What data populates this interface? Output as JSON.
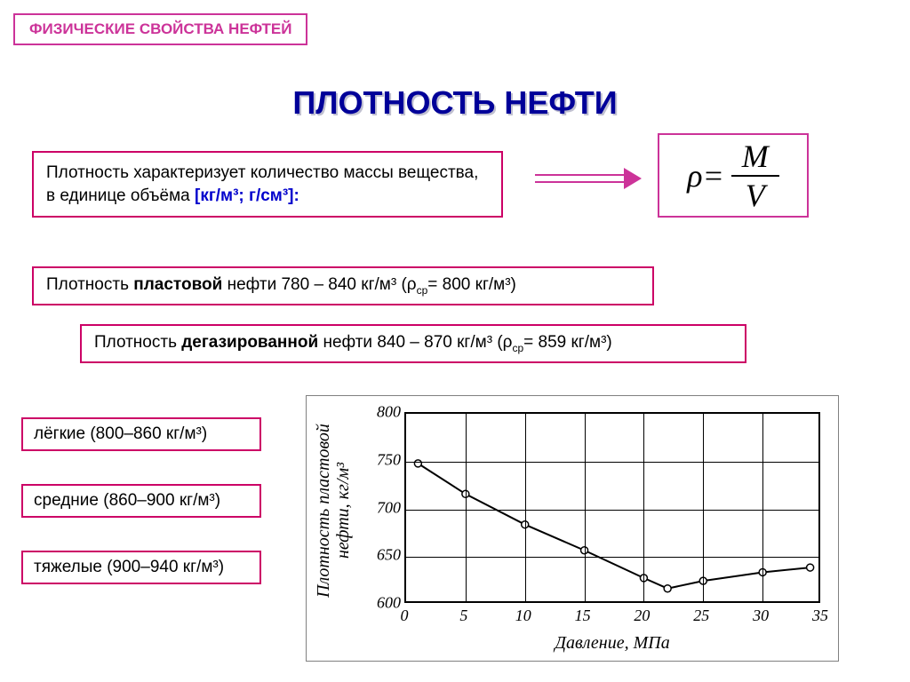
{
  "header": {
    "badge": "ФИЗИЧЕСКИЕ СВОЙСТВА НЕФТЕЙ"
  },
  "title": "ПЛОТНОСТЬ НЕФТИ",
  "definition": {
    "text": "Плотность характеризует количество массы вещества, в единице объёма ",
    "units": "[кг/м³; г/см³]:"
  },
  "formula": {
    "lhs": "ρ",
    "eq": " = ",
    "num": "M",
    "den": "V"
  },
  "rows": {
    "reservoir_prefix": "Плотность ",
    "reservoir_bold": "пластовой",
    "reservoir_suffix": " нефти  780 – 840 кг/м³ (ρ",
    "reservoir_sub": "ср",
    "reservoir_end": "= 800 кг/м³)",
    "degassed_prefix": "Плотность ",
    "degassed_bold": "дегазированной",
    "degassed_suffix": " нефти  840 – 870 кг/м³ (ρ",
    "degassed_sub": "ср",
    "degassed_end": "= 859 кг/м³)"
  },
  "categories": {
    "light": "лёгкие (800–860 кг/м³)",
    "medium": "средние (860–900 кг/м³)",
    "heavy": "тяжелые (900–940 кг/м³)"
  },
  "chart": {
    "type": "line",
    "xlabel": "Давление, МПа",
    "ylabel": "Плотность пластовой нефти, кг/м³",
    "xlim": [
      0,
      35
    ],
    "ylim": [
      600,
      800
    ],
    "xtick_step": 5,
    "ytick_step": 50,
    "x": [
      1,
      5,
      10,
      15,
      20,
      22,
      25,
      30,
      34
    ],
    "y": [
      748,
      716,
      684,
      657,
      628,
      617,
      625,
      634,
      639
    ],
    "line_color": "#000000",
    "marker_fill": "#ffffff",
    "marker_stroke": "#000000",
    "line_width": 2,
    "marker_radius": 4,
    "background_color": "#ffffff",
    "grid_color": "#000000"
  },
  "colors": {
    "accent": "#cc0066",
    "title": "#000099",
    "units": "#0000cc",
    "box_border": "#cc3399"
  }
}
